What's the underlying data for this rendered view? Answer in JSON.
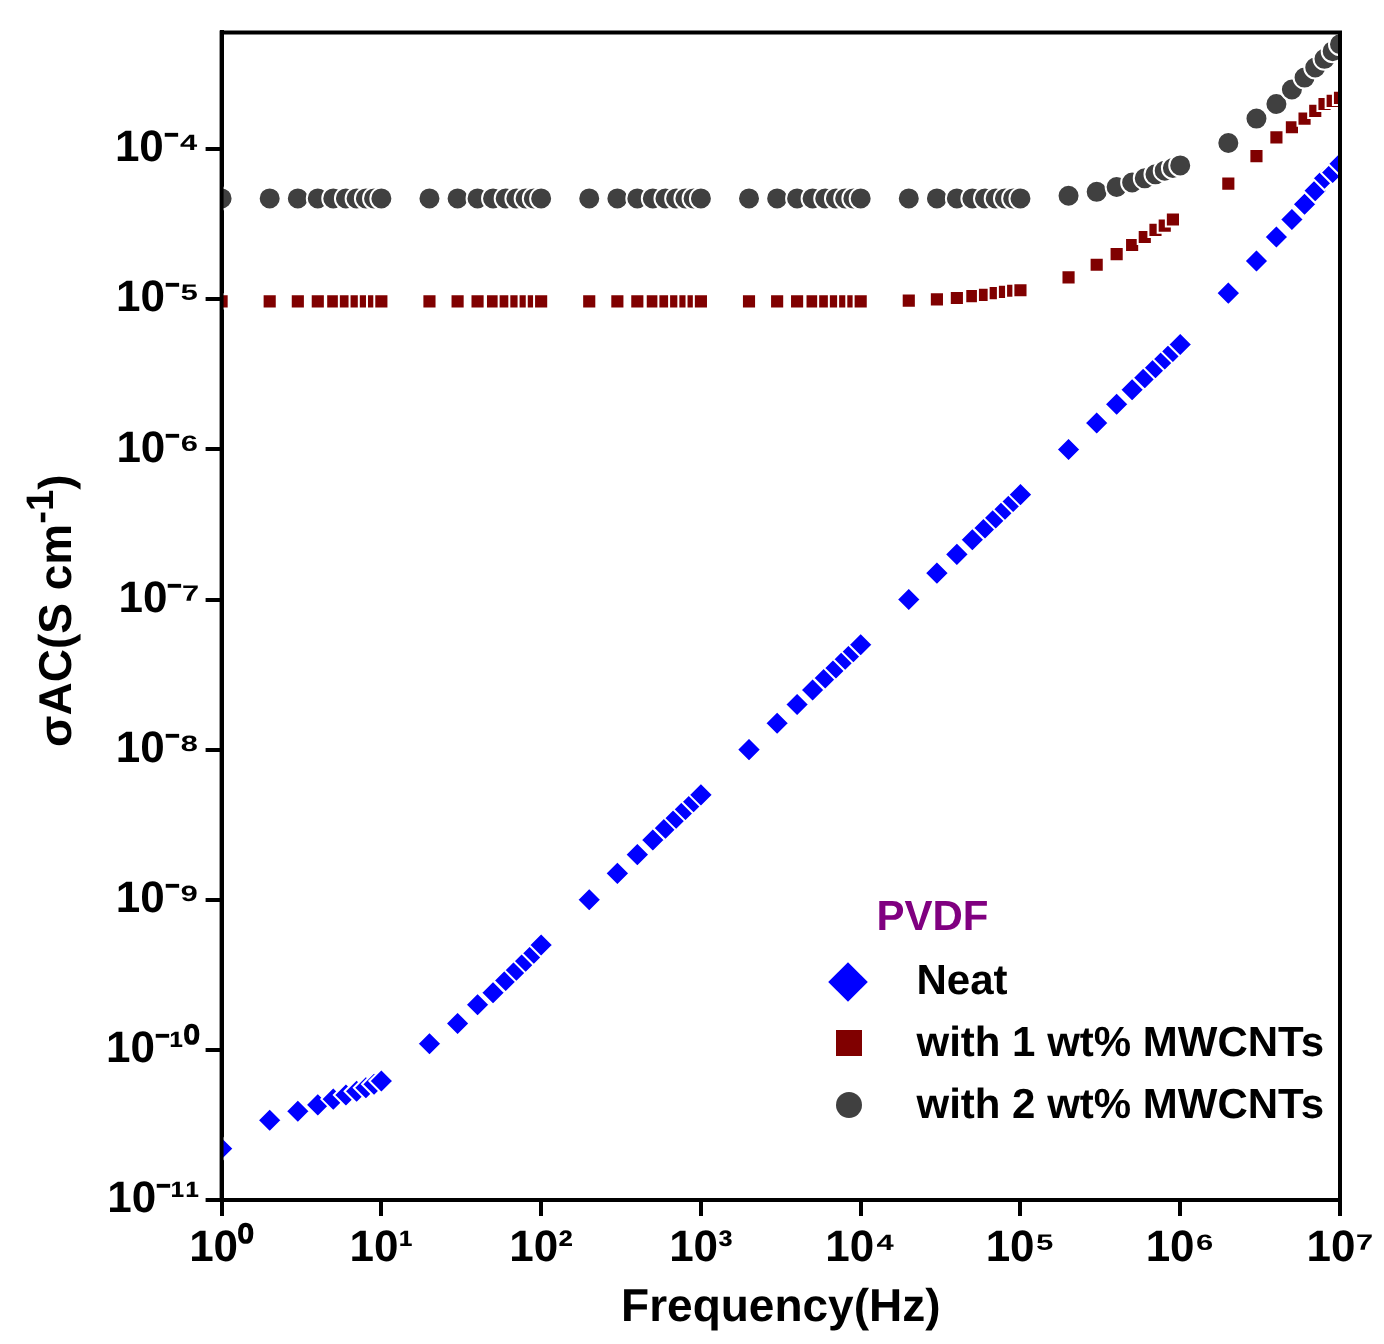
{
  "chart_data": {
    "type": "scatter",
    "xlabel": "Frequency(Hz)",
    "ylabel": "σAC(S cm$^{-1}$)",
    "legend_title": "PVDF",
    "log": "xy",
    "grid": false,
    "legend": "bottom right",
    "xlim": [
      1,
      10000000
    ],
    "ylim": [
      1e-11,
      0.0006
    ],
    "xticks": [
      {
        "value": 1,
        "label": "10⁰"
      },
      {
        "value": 10,
        "label": "10¹"
      },
      {
        "value": 100,
        "label": "10²"
      },
      {
        "value": 1000,
        "label": "10³"
      },
      {
        "value": 10000,
        "label": "10⁴"
      },
      {
        "value": 100000,
        "label": "10⁵"
      },
      {
        "value": 1000000,
        "label": "10⁶"
      },
      {
        "value": 10000000,
        "label": "10⁷"
      }
    ],
    "yticks": [
      {
        "value": 1e-11,
        "label": "10⁻¹¹"
      },
      {
        "value": 1e-10,
        "label": "10⁻¹⁰"
      },
      {
        "value": 1e-09,
        "label": "10⁻⁹"
      },
      {
        "value": 1e-08,
        "label": "10⁻⁸"
      },
      {
        "value": 1e-07,
        "label": "10⁻⁷"
      },
      {
        "value": 1e-06,
        "label": "10⁻⁶"
      },
      {
        "value": 1e-05,
        "label": "10⁻⁵"
      },
      {
        "value": 0.0001,
        "label": "10⁻⁴"
      }
    ],
    "x": [
      1,
      2,
      3,
      4,
      5,
      6,
      7,
      8,
      9,
      10,
      20,
      30,
      40,
      50,
      60,
      70,
      80,
      90,
      100,
      200,
      300,
      400,
      500,
      600,
      700,
      800,
      900,
      1000,
      2000,
      3000,
      4000,
      5000,
      6000,
      7000,
      8000,
      9000,
      10000,
      20000,
      30000,
      40000,
      50000,
      60000,
      70000,
      80000,
      90000,
      100000,
      200000,
      300000,
      400000,
      500000,
      600000,
      700000,
      800000,
      900000,
      1000000,
      2000000,
      3000000,
      4000000,
      5000000,
      6000000,
      7000000,
      8000000,
      9000000,
      10000000
    ],
    "series": [
      {
        "name": "Neat",
        "color": "#0000ff",
        "marker": "diamond",
        "values": [
          2.2e-11,
          3.4e-11,
          3.9e-11,
          4.3e-11,
          4.7e-11,
          5e-11,
          5.3e-11,
          5.6e-11,
          5.9e-11,
          6.2e-11,
          1.1e-10,
          1.5e-10,
          2e-10,
          2.4e-10,
          2.9e-10,
          3.4e-10,
          3.9e-10,
          4.4e-10,
          5e-10,
          1e-09,
          1.5e-09,
          2e-09,
          2.5e-09,
          3e-09,
          3.5e-09,
          4e-09,
          4.5e-09,
          5e-09,
          1e-08,
          1.5e-08,
          2e-08,
          2.5e-08,
          3e-08,
          3.5e-08,
          4e-08,
          4.5e-08,
          5e-08,
          1e-07,
          1.5e-07,
          2e-07,
          2.5e-07,
          3e-07,
          3.5e-07,
          4e-07,
          4.5e-07,
          5e-07,
          1e-06,
          1.5e-06,
          2e-06,
          2.5e-06,
          3e-06,
          3.5e-06,
          4e-06,
          4.5e-06,
          5e-06,
          1.1e-05,
          1.8e-05,
          2.6e-05,
          3.4e-05,
          4.3e-05,
          5.3e-05,
          6.4e-05,
          7e-05,
          8e-05
        ]
      },
      {
        "name": "with 1 wt% MWCNTs",
        "color": "#800000",
        "marker": "square",
        "values": [
          9.7e-06,
          9.7e-06,
          9.7e-06,
          9.7e-06,
          9.7e-06,
          9.7e-06,
          9.7e-06,
          9.7e-06,
          9.7e-06,
          9.7e-06,
          9.7e-06,
          9.7e-06,
          9.7e-06,
          9.7e-06,
          9.7e-06,
          9.7e-06,
          9.7e-06,
          9.7e-06,
          9.7e-06,
          9.7e-06,
          9.7e-06,
          9.7e-06,
          9.7e-06,
          9.7e-06,
          9.7e-06,
          9.7e-06,
          9.7e-06,
          9.7e-06,
          9.7e-06,
          9.7e-06,
          9.7e-06,
          9.7e-06,
          9.7e-06,
          9.7e-06,
          9.7e-06,
          9.7e-06,
          9.7e-06,
          9.8e-06,
          1e-05,
          1.02e-05,
          1.05e-05,
          1.07e-05,
          1.1e-05,
          1.12e-05,
          1.14e-05,
          1.15e-05,
          1.4e-05,
          1.7e-05,
          2e-05,
          2.3e-05,
          2.6e-05,
          2.9e-05,
          3.1e-05,
          3.4e-05,
          null,
          5.9e-05,
          9e-05,
          0.00012,
          0.00014,
          0.00016,
          0.00018,
          0.0002,
          0.00021,
          0.00022
        ]
      },
      {
        "name": "with 2 wt% MWCNTs",
        "color": "#404040",
        "marker": "circle",
        "values": [
          4.7e-05,
          4.7e-05,
          4.7e-05,
          4.7e-05,
          4.7e-05,
          4.7e-05,
          4.7e-05,
          4.7e-05,
          4.7e-05,
          4.7e-05,
          4.7e-05,
          4.7e-05,
          4.7e-05,
          4.7e-05,
          4.7e-05,
          4.7e-05,
          4.7e-05,
          4.7e-05,
          4.7e-05,
          4.7e-05,
          4.7e-05,
          4.7e-05,
          4.7e-05,
          4.7e-05,
          4.7e-05,
          4.7e-05,
          4.7e-05,
          4.7e-05,
          4.7e-05,
          4.7e-05,
          4.7e-05,
          4.7e-05,
          4.7e-05,
          4.7e-05,
          4.7e-05,
          4.7e-05,
          4.7e-05,
          4.7e-05,
          4.7e-05,
          4.7e-05,
          4.7e-05,
          4.7e-05,
          4.7e-05,
          4.7e-05,
          4.7e-05,
          4.7e-05,
          4.9e-05,
          5.2e-05,
          5.6e-05,
          6e-05,
          6.4e-05,
          6.8e-05,
          7.2e-05,
          7.5e-05,
          7.8e-05,
          0.00011,
          0.00016,
          0.0002,
          0.00025,
          0.0003,
          0.00035,
          0.0004,
          0.00045,
          0.0005
        ]
      }
    ]
  }
}
